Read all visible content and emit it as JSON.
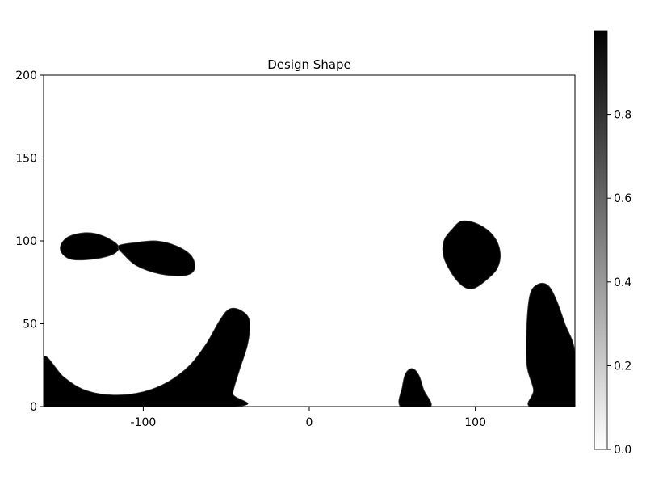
{
  "chart_data": {
    "type": "heatmap",
    "title": "Design Shape",
    "xlabel": "",
    "ylabel": "",
    "xlim": [
      -160,
      160
    ],
    "ylim": [
      0,
      200
    ],
    "x_ticks": [
      -100,
      0,
      100
    ],
    "y_ticks": [
      0,
      50,
      100,
      150,
      200
    ],
    "colorbar": {
      "range": [
        0,
        1
      ],
      "colormap": "grays",
      "low_color": "#ffffff",
      "high_color": "#000000",
      "ticks": [
        0.0,
        0.2,
        0.4,
        0.6,
        0.8
      ],
      "tick_labels": [
        "0.0",
        "0.2",
        "0.4",
        "0.6",
        "0.8"
      ]
    },
    "material_regions": [
      {
        "name": "bottom-left-arc",
        "value": 1,
        "outline": [
          [
            -160,
            0
          ],
          [
            -160,
            30
          ],
          [
            -148,
            18
          ],
          [
            -135,
            10
          ],
          [
            -118,
            7
          ],
          [
            -100,
            9
          ],
          [
            -85,
            15
          ],
          [
            -72,
            25
          ],
          [
            -62,
            38
          ],
          [
            -54,
            52
          ],
          [
            -48,
            59
          ],
          [
            -41,
            58
          ],
          [
            -36,
            52
          ],
          [
            -37,
            38
          ],
          [
            -42,
            22
          ],
          [
            -46,
            8
          ],
          [
            -45,
            0
          ]
        ]
      },
      {
        "name": "left-lobe-small",
        "value": 1,
        "outline": [
          [
            -150,
            95
          ],
          [
            -146,
            102
          ],
          [
            -135,
            105
          ],
          [
            -124,
            103
          ],
          [
            -115,
            97
          ],
          [
            -118,
            92
          ],
          [
            -130,
            89
          ],
          [
            -144,
            89
          ]
        ]
      },
      {
        "name": "left-lobe-large",
        "value": 1,
        "outline": [
          [
            -115,
            97
          ],
          [
            -105,
            99
          ],
          [
            -92,
            100
          ],
          [
            -80,
            97
          ],
          [
            -71,
            91
          ],
          [
            -69,
            83
          ],
          [
            -75,
            79
          ],
          [
            -90,
            80
          ],
          [
            -104,
            85
          ],
          [
            -112,
            92
          ]
        ]
      },
      {
        "name": "right-blob",
        "value": 1,
        "outline": [
          [
            86,
            107
          ],
          [
            92,
            112
          ],
          [
            102,
            110
          ],
          [
            111,
            103
          ],
          [
            115,
            93
          ],
          [
            113,
            83
          ],
          [
            105,
            75
          ],
          [
            98,
            71
          ],
          [
            92,
            73
          ],
          [
            86,
            80
          ],
          [
            81,
            90
          ],
          [
            81,
            100
          ]
        ]
      },
      {
        "name": "bottom-center-spike",
        "value": 1,
        "outline": [
          [
            55,
            0
          ],
          [
            56,
            12
          ],
          [
            58,
            20
          ],
          [
            62,
            23
          ],
          [
            66,
            19
          ],
          [
            69,
            10
          ],
          [
            73,
            0
          ]
        ]
      },
      {
        "name": "right-edge-spike",
        "value": 1,
        "outline": [
          [
            133,
            0
          ],
          [
            135,
            10
          ],
          [
            131,
            25
          ],
          [
            131,
            50
          ],
          [
            133,
            68
          ],
          [
            138,
            74
          ],
          [
            144,
            73
          ],
          [
            149,
            64
          ],
          [
            154,
            50
          ],
          [
            160,
            33
          ],
          [
            160,
            0
          ]
        ]
      }
    ]
  }
}
